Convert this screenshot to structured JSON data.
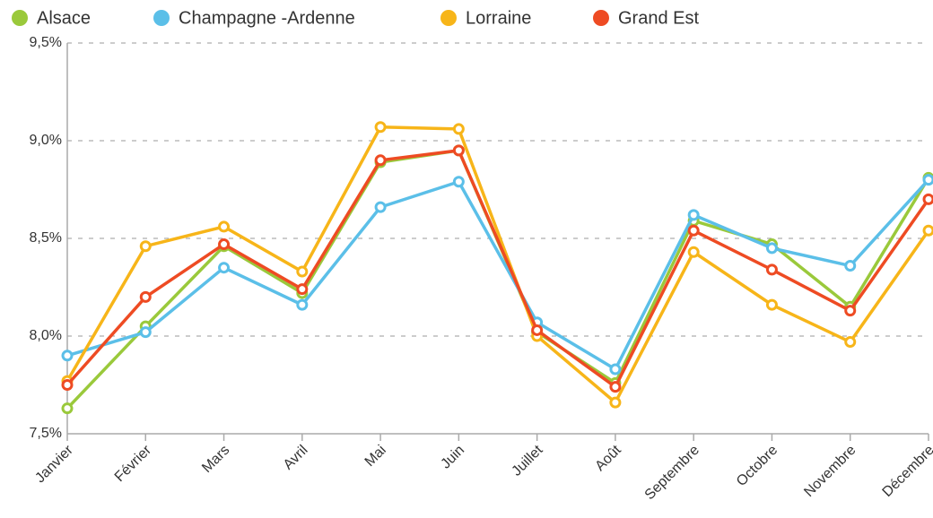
{
  "chart_data": {
    "type": "line",
    "categories": [
      "Janvier",
      "Février",
      "Mars",
      "Avril",
      "Mai",
      "Juin",
      "Juillet",
      "Août",
      "Septembre",
      "Octobre",
      "Novembre",
      "Décembre"
    ],
    "series": [
      {
        "name": "Alsace",
        "color": "#9ac93b",
        "values": [
          7.63,
          8.05,
          8.46,
          8.22,
          8.89,
          8.95,
          8.02,
          7.76,
          8.59,
          8.47,
          8.15,
          8.81
        ]
      },
      {
        "name": "Champagne -Ardenne",
        "color": "#5bbfe8",
        "values": [
          7.9,
          8.02,
          8.35,
          8.16,
          8.66,
          8.79,
          8.07,
          7.83,
          8.62,
          8.45,
          8.36,
          8.8
        ]
      },
      {
        "name": "Lorraine",
        "color": "#f7b519",
        "values": [
          7.77,
          8.46,
          8.56,
          8.33,
          9.07,
          9.06,
          8.0,
          7.66,
          8.43,
          8.16,
          7.97,
          8.54
        ]
      },
      {
        "name": "Grand Est",
        "color": "#ee4b23",
        "values": [
          7.75,
          8.2,
          8.47,
          8.24,
          8.9,
          8.95,
          8.03,
          7.74,
          8.54,
          8.34,
          8.13,
          8.7
        ]
      }
    ],
    "ylim": [
      7.5,
      9.5
    ],
    "yticks": [
      {
        "value": 7.5,
        "label": "7,5%"
      },
      {
        "value": 8.0,
        "label": "8,0%"
      },
      {
        "value": 8.5,
        "label": "8,5%"
      },
      {
        "value": 9.0,
        "label": "9,0%"
      },
      {
        "value": 9.5,
        "label": "9,5%"
      }
    ],
    "grid": true,
    "legend": "top"
  }
}
